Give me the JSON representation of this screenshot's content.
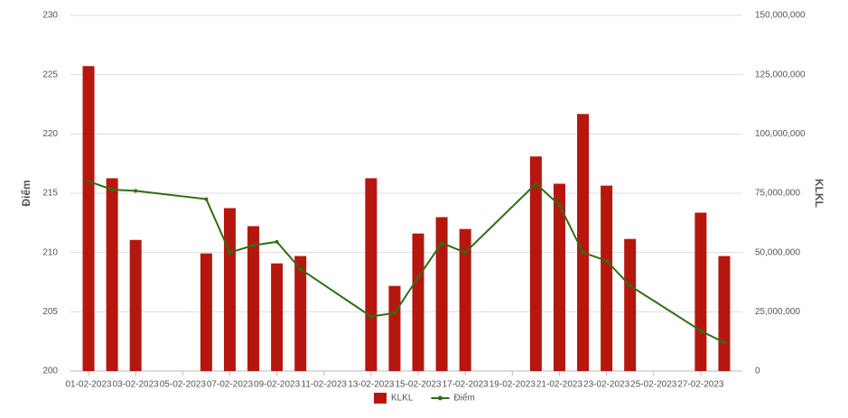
{
  "chart_data": {
    "type": "bar_line",
    "categories": [
      "01-02-2023",
      null,
      "03-02-2023",
      null,
      "05-02-2023",
      null,
      "07-02-2023",
      null,
      "09-02-2023",
      null,
      "11-02-2023",
      null,
      "13-02-2023",
      null,
      "15-02-2023",
      null,
      "17-02-2023",
      null,
      "19-02-2023",
      null,
      "21-02-2023",
      null,
      "23-02-2023",
      null,
      "25-02-2023",
      null,
      "27-02-2023",
      null
    ],
    "y_label": "Điểm",
    "y2_label": "KLKL",
    "ylim": [
      200,
      230
    ],
    "yticks": [
      200,
      205,
      210,
      215,
      220,
      225,
      230
    ],
    "y2lim": [
      0,
      150000000
    ],
    "y2ticks": [
      0,
      {
        "value": 25000000,
        "label": "25,000,000"
      },
      {
        "value": 50000000,
        "label": "50,000,000"
      },
      {
        "value": 75000000,
        "label": "75,000,000"
      },
      {
        "value": 100000000,
        "label": "100,000,000"
      },
      {
        "value": 125000000,
        "label": "125,000,000"
      },
      {
        "value": 150000000,
        "label": "150,000,000"
      }
    ],
    "grid": true,
    "span_gaps": true,
    "legend": "bottom",
    "series": [
      {
        "name": "KLKL",
        "type": "bar",
        "axis": "y2",
        "color": "#b5170f",
        "values": [
          128600000,
          81300000,
          55300000,
          null,
          null,
          49600000,
          68700000,
          61100000,
          45400000,
          48500000,
          null,
          null,
          81300000,
          35900000,
          58000000,
          64900000,
          59900000,
          null,
          null,
          90500000,
          79000000,
          108400000,
          78200000,
          55700000,
          null,
          null,
          66800000,
          48500000
        ]
      },
      {
        "name": "Điểm",
        "type": "line",
        "axis": "y",
        "color": "#2e6e14",
        "values": [
          216.0,
          215.3,
          215.2,
          null,
          null,
          214.5,
          210.0,
          210.6,
          210.9,
          208.6,
          null,
          null,
          204.6,
          204.9,
          207.9,
          210.8,
          210.0,
          null,
          null,
          215.8,
          214.0,
          210.0,
          209.3,
          207.2,
          null,
          null,
          203.4,
          202.4
        ]
      }
    ]
  }
}
